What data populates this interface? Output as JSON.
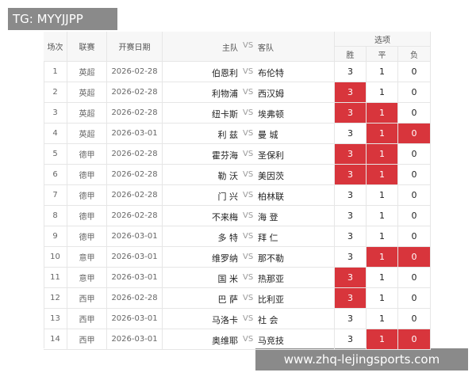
{
  "watermark_top": "TG: MYYJJPP",
  "watermark_bottom": "www.zhq-lejingsports.com",
  "header": {
    "no": "场次",
    "league": "联赛",
    "date": "开赛日期",
    "home": "主队",
    "vs": "VS",
    "away": "客队",
    "options": "选项",
    "win": "胜",
    "draw": "平",
    "lose": "负"
  },
  "table": {
    "rows": [
      {
        "no": 1,
        "league": "英超",
        "date": "2026-02-28",
        "home": "伯恩利",
        "vs": "VS",
        "away": "布伦特",
        "odds": [
          3,
          1,
          0
        ],
        "selected": [
          false,
          false,
          false
        ]
      },
      {
        "no": 2,
        "league": "英超",
        "date": "2026-02-28",
        "home": "利物浦",
        "vs": "VS",
        "away": "西汉姆",
        "odds": [
          3,
          1,
          0
        ],
        "selected": [
          true,
          false,
          false
        ]
      },
      {
        "no": 3,
        "league": "英超",
        "date": "2026-02-28",
        "home": "纽卡斯",
        "vs": "VS",
        "away": "埃弗顿",
        "odds": [
          3,
          1,
          0
        ],
        "selected": [
          true,
          true,
          false
        ]
      },
      {
        "no": 4,
        "league": "英超",
        "date": "2026-03-01",
        "home": "利 兹",
        "vs": "VS",
        "away": "曼 城",
        "odds": [
          3,
          1,
          0
        ],
        "selected": [
          false,
          true,
          true
        ]
      },
      {
        "no": 5,
        "league": "德甲",
        "date": "2026-02-28",
        "home": "霍芬海",
        "vs": "VS",
        "away": "圣保利",
        "odds": [
          3,
          1,
          0
        ],
        "selected": [
          true,
          true,
          false
        ]
      },
      {
        "no": 6,
        "league": "德甲",
        "date": "2026-02-28",
        "home": "勒 沃",
        "vs": "VS",
        "away": "美因茨",
        "odds": [
          3,
          1,
          0
        ],
        "selected": [
          true,
          true,
          false
        ]
      },
      {
        "no": 7,
        "league": "德甲",
        "date": "2026-02-28",
        "home": "门 兴",
        "vs": "VS",
        "away": "柏林联",
        "odds": [
          3,
          1,
          0
        ],
        "selected": [
          false,
          false,
          false
        ]
      },
      {
        "no": 8,
        "league": "德甲",
        "date": "2026-02-28",
        "home": "不来梅",
        "vs": "VS",
        "away": "海 登",
        "odds": [
          3,
          1,
          0
        ],
        "selected": [
          false,
          false,
          false
        ]
      },
      {
        "no": 9,
        "league": "德甲",
        "date": "2026-03-01",
        "home": "多 特",
        "vs": "VS",
        "away": "拜 仁",
        "odds": [
          3,
          1,
          0
        ],
        "selected": [
          false,
          false,
          false
        ]
      },
      {
        "no": 10,
        "league": "意甲",
        "date": "2026-03-01",
        "home": "维罗纳",
        "vs": "VS",
        "away": "那不勒",
        "odds": [
          3,
          1,
          0
        ],
        "selected": [
          false,
          true,
          true
        ]
      },
      {
        "no": 11,
        "league": "意甲",
        "date": "2026-03-01",
        "home": "国 米",
        "vs": "VS",
        "away": "热那亚",
        "odds": [
          3,
          1,
          0
        ],
        "selected": [
          true,
          false,
          false
        ]
      },
      {
        "no": 12,
        "league": "西甲",
        "date": "2026-02-28",
        "home": "巴 萨",
        "vs": "VS",
        "away": "比利亚",
        "odds": [
          3,
          1,
          0
        ],
        "selected": [
          true,
          false,
          false
        ]
      },
      {
        "no": 13,
        "league": "西甲",
        "date": "2026-03-01",
        "home": "马洛卡",
        "vs": "VS",
        "away": "社 会",
        "odds": [
          3,
          1,
          0
        ],
        "selected": [
          false,
          false,
          false
        ]
      },
      {
        "no": 14,
        "league": "西甲",
        "date": "2026-03-01",
        "home": "奥维耶",
        "vs": "VS",
        "away": "马竞技",
        "odds": [
          3,
          1,
          0
        ],
        "selected": [
          false,
          true,
          true
        ]
      }
    ]
  }
}
